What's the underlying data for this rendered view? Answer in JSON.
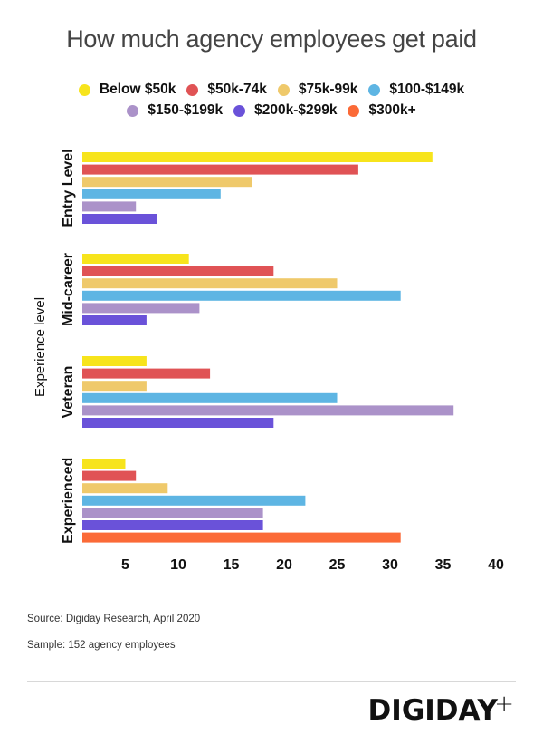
{
  "chart_data": {
    "type": "bar",
    "orientation": "horizontal",
    "title": "How much agency employees get paid",
    "xlabel": "",
    "ylabel": "Experience level",
    "xlim": [
      0,
      40
    ],
    "xticks": [
      5,
      10,
      15,
      20,
      25,
      30,
      35,
      40
    ],
    "grid": false,
    "legend_position": "top-center",
    "categories": [
      "Entry Level",
      "Mid-career",
      "Veteran",
      "Experienced"
    ],
    "series": [
      {
        "name": "Below $50k",
        "color": "#f7e41c",
        "values": [
          34,
          11,
          7,
          5
        ]
      },
      {
        "name": "$50k-74k",
        "color": "#e05355",
        "values": [
          27,
          19,
          13,
          6
        ]
      },
      {
        "name": "$75k-99k",
        "color": "#efc96b",
        "values": [
          17,
          25,
          7,
          9
        ]
      },
      {
        "name": "$100-$149k",
        "color": "#5eb5e3",
        "values": [
          14,
          31,
          25,
          22
        ]
      },
      {
        "name": "$150-$199k",
        "color": "#ab92c9",
        "values": [
          6,
          12,
          36,
          18
        ]
      },
      {
        "name": "$200k-$299k",
        "color": "#6a52d9",
        "values": [
          8,
          7,
          19,
          18
        ]
      },
      {
        "name": "$300k+",
        "color": "#fb6a37",
        "values": [
          null,
          null,
          null,
          31
        ]
      }
    ]
  },
  "legend_rows": [
    [
      0,
      1,
      2,
      3
    ],
    [
      4,
      5,
      6
    ]
  ],
  "footer": {
    "source": "Source: Digiday Research, April 2020",
    "sample": "Sample: 152 agency employees",
    "logo": "DIGIDAY",
    "logo_plus": "+"
  }
}
